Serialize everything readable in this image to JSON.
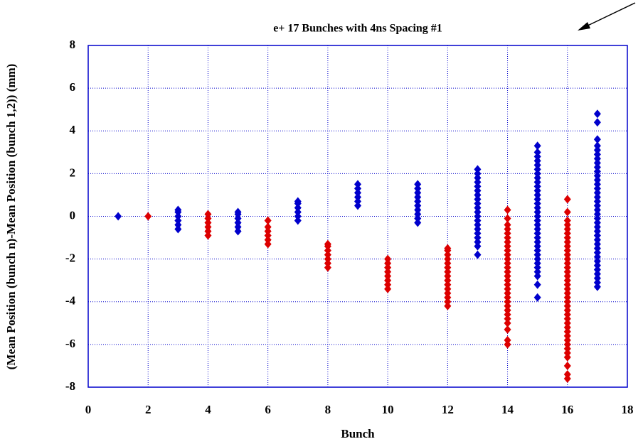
{
  "chart_data": {
    "type": "scatter",
    "title": "e+ 17 Bunches with 4ns Spacing #1",
    "x_label": "Bunch",
    "y_label": "(Mean Position (bunch n)-Mean Position (bunch 1,2)) (mm)",
    "xlim": [
      0,
      18
    ],
    "xticks": [
      0,
      2,
      4,
      6,
      8,
      10,
      12,
      14,
      16,
      18
    ],
    "ylim": [
      -8,
      8
    ],
    "yticks": [
      -8,
      -6,
      -4,
      -2,
      0,
      2,
      4,
      6,
      8
    ],
    "grid": true,
    "series": [
      {
        "color": "#0000cc",
        "x": 1,
        "values": [
          0
        ]
      },
      {
        "color": "#dd0000",
        "x": 2,
        "values": [
          0
        ]
      },
      {
        "color": "#0000cc",
        "x": 3,
        "values": [
          -0.6,
          -0.4,
          -0.2,
          0,
          0.2,
          0.3
        ]
      },
      {
        "color": "#dd0000",
        "x": 4,
        "values": [
          -0.9,
          -0.7,
          -0.5,
          -0.3,
          -0.1,
          0.1
        ]
      },
      {
        "color": "#0000cc",
        "x": 5,
        "values": [
          -0.7,
          -0.5,
          -0.3,
          -0.1,
          0.1,
          0.2
        ]
      },
      {
        "color": "#dd0000",
        "x": 6,
        "values": [
          -1.3,
          -1.1,
          -0.9,
          -0.7,
          -0.5,
          -0.2
        ]
      },
      {
        "color": "#0000cc",
        "x": 7,
        "values": [
          -0.2,
          0,
          0.2,
          0.4,
          0.6,
          0.7
        ]
      },
      {
        "color": "#dd0000",
        "x": 8,
        "values": [
          -2.4,
          -2.2,
          -2,
          -1.8,
          -1.6,
          -1.4,
          -1.3
        ]
      },
      {
        "color": "#0000cc",
        "x": 9,
        "values": [
          0.5,
          0.7,
          0.9,
          1.1,
          1.3,
          1.5
        ]
      },
      {
        "color": "#dd0000",
        "x": 10,
        "values": [
          -3.4,
          -3.2,
          -3,
          -2.8,
          -2.6,
          -2.4,
          -2.2,
          -2
        ]
      },
      {
        "color": "#0000cc",
        "x": 11,
        "values": [
          -0.3,
          -0.1,
          0.1,
          0.3,
          0.5,
          0.7,
          0.9,
          1.1,
          1.3,
          1.5
        ]
      },
      {
        "color": "#dd0000",
        "x": 12,
        "values": [
          -4.2,
          -4,
          -3.8,
          -3.6,
          -3.4,
          -3.2,
          -3,
          -2.8,
          -2.6,
          -2.4,
          -2.2,
          -2,
          -1.8,
          -1.6,
          -1.5
        ]
      },
      {
        "color": "#0000cc",
        "x": 13,
        "values": [
          -1.8,
          -1.4,
          -1.2,
          -1,
          -0.8,
          -0.6,
          -0.4,
          -0.2,
          0,
          0.2,
          0.4,
          0.6,
          0.8,
          1,
          1.2,
          1.4,
          1.6,
          1.8,
          2,
          2.2
        ]
      },
      {
        "color": "#dd0000",
        "x": 14,
        "values": [
          -6,
          -5.8,
          -5.3,
          -5,
          -4.8,
          -4.6,
          -4.4,
          -4.2,
          -4,
          -3.8,
          -3.6,
          -3.4,
          -3.2,
          -3,
          -2.8,
          -2.6,
          -2.4,
          -2.2,
          -2,
          -1.8,
          -1.6,
          -1.4,
          -1.2,
          -1,
          -0.8,
          -0.6,
          -0.4,
          -0.1,
          0.3
        ]
      },
      {
        "color": "#0000cc",
        "x": 15,
        "values": [
          -3.8,
          -3.2,
          -2.8,
          -2.6,
          -2.4,
          -2.2,
          -2,
          -1.8,
          -1.6,
          -1.4,
          -1.2,
          -1,
          -0.8,
          -0.6,
          -0.4,
          -0.2,
          0,
          0.2,
          0.4,
          0.6,
          0.8,
          1,
          1.2,
          1.4,
          1.6,
          1.8,
          2,
          2.2,
          2.4,
          2.6,
          2.8,
          3,
          3.3
        ]
      },
      {
        "color": "#dd0000",
        "x": 16,
        "values": [
          -7.6,
          -7.4,
          -7,
          -6.6,
          -6.4,
          -6.2,
          -6,
          -5.8,
          -5.6,
          -5.4,
          -5.2,
          -5,
          -4.8,
          -4.6,
          -4.4,
          -4.2,
          -4,
          -3.8,
          -3.6,
          -3.4,
          -3.2,
          -3,
          -2.8,
          -2.6,
          -2.4,
          -2.2,
          -2,
          -1.8,
          -1.6,
          -1.4,
          -1.2,
          -1,
          -0.8,
          -0.6,
          -0.4,
          -0.2,
          0.2,
          0.8
        ]
      },
      {
        "color": "#0000cc",
        "x": 17,
        "values": [
          -3.3,
          -3.1,
          -2.9,
          -2.7,
          -2.5,
          -2.3,
          -2.1,
          -1.9,
          -1.7,
          -1.5,
          -1.3,
          -1.1,
          -0.9,
          -0.7,
          -0.5,
          -0.3,
          -0.1,
          0.1,
          0.3,
          0.5,
          0.7,
          0.9,
          1.1,
          1.3,
          1.5,
          1.7,
          1.9,
          2.1,
          2.3,
          2.5,
          2.7,
          2.9,
          3.1,
          3.3,
          3.6,
          4.4,
          4.8
        ]
      }
    ]
  }
}
